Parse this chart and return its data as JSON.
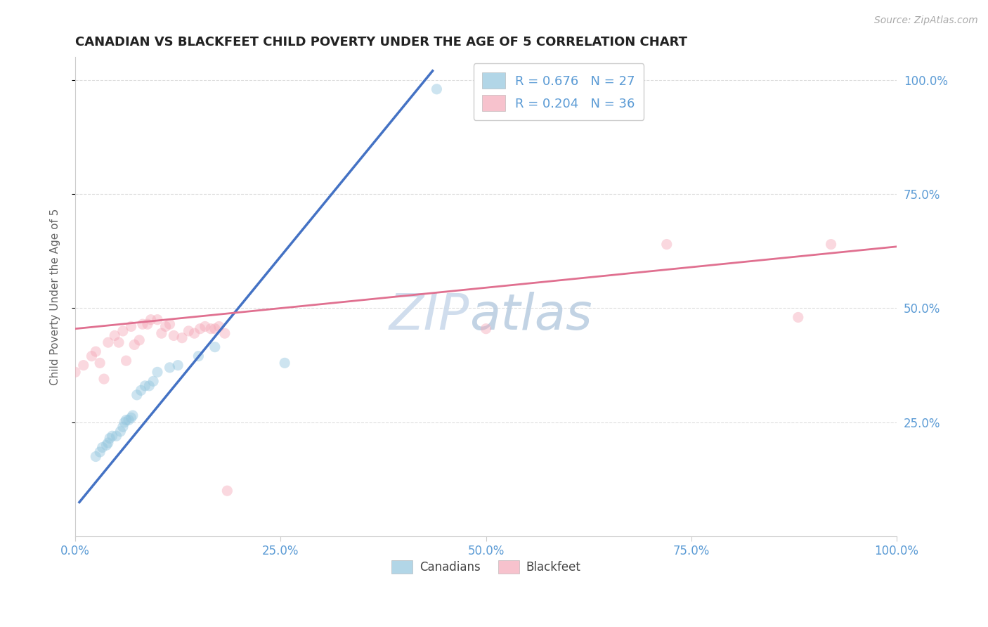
{
  "title": "CANADIAN VS BLACKFEET CHILD POVERTY UNDER THE AGE OF 5 CORRELATION CHART",
  "source": "Source: ZipAtlas.com",
  "ylabel": "Child Poverty Under the Age of 5",
  "xlim": [
    0,
    1
  ],
  "ylim": [
    0,
    1.05
  ],
  "xtick_labels": [
    "0.0%",
    "25.0%",
    "50.0%",
    "75.0%",
    "100.0%"
  ],
  "xtick_positions": [
    0,
    0.25,
    0.5,
    0.75,
    1.0
  ],
  "ytick_labels": [
    "25.0%",
    "50.0%",
    "75.0%",
    "100.0%"
  ],
  "ytick_positions": [
    0.25,
    0.5,
    0.75,
    1.0
  ],
  "canadian_color": "#92c5de",
  "blackfeet_color": "#f4a9b8",
  "canadian_line_color": "#4472c4",
  "blackfeet_line_color": "#e07090",
  "background_color": "#ffffff",
  "grid_color": "#dddddd",
  "canadians_x": [
    0.025,
    0.03,
    0.033,
    0.038,
    0.04,
    0.042,
    0.045,
    0.05,
    0.055,
    0.058,
    0.06,
    0.062,
    0.065,
    0.068,
    0.07,
    0.075,
    0.08,
    0.085,
    0.09,
    0.095,
    0.1,
    0.115,
    0.125,
    0.15,
    0.17,
    0.255,
    0.44
  ],
  "canadians_y": [
    0.175,
    0.185,
    0.195,
    0.2,
    0.205,
    0.215,
    0.22,
    0.22,
    0.23,
    0.24,
    0.25,
    0.255,
    0.255,
    0.26,
    0.265,
    0.31,
    0.32,
    0.33,
    0.33,
    0.34,
    0.36,
    0.37,
    0.375,
    0.395,
    0.415,
    0.38,
    0.98
  ],
  "blackfeet_x": [
    0.0,
    0.01,
    0.02,
    0.025,
    0.03,
    0.035,
    0.04,
    0.048,
    0.053,
    0.058,
    0.062,
    0.068,
    0.072,
    0.078,
    0.082,
    0.088,
    0.092,
    0.1,
    0.105,
    0.11,
    0.115,
    0.12,
    0.13,
    0.138,
    0.145,
    0.152,
    0.158,
    0.165,
    0.17,
    0.175,
    0.182,
    0.185,
    0.5,
    0.72,
    0.88,
    0.92
  ],
  "blackfeet_y": [
    0.36,
    0.375,
    0.395,
    0.405,
    0.38,
    0.345,
    0.425,
    0.44,
    0.425,
    0.45,
    0.385,
    0.46,
    0.42,
    0.43,
    0.465,
    0.465,
    0.475,
    0.475,
    0.445,
    0.46,
    0.465,
    0.44,
    0.435,
    0.45,
    0.445,
    0.455,
    0.46,
    0.455,
    0.455,
    0.46,
    0.445,
    0.1,
    0.455,
    0.64,
    0.48,
    0.64
  ],
  "canadian_trend_x": [
    0.005,
    0.435
  ],
  "canadian_trend_y": [
    0.075,
    1.02
  ],
  "blackfeet_trend_x": [
    0.0,
    1.0
  ],
  "blackfeet_trend_y": [
    0.455,
    0.635
  ],
  "marker_size": 120,
  "marker_alpha": 0.45,
  "title_color": "#222222",
  "axis_label_color": "#666666",
  "tick_label_color": "#5b9bd5",
  "legend_text_color": "#5b9bd5",
  "watermark_zip_color": "#c8d8ea",
  "watermark_atlas_color": "#b8cce0"
}
